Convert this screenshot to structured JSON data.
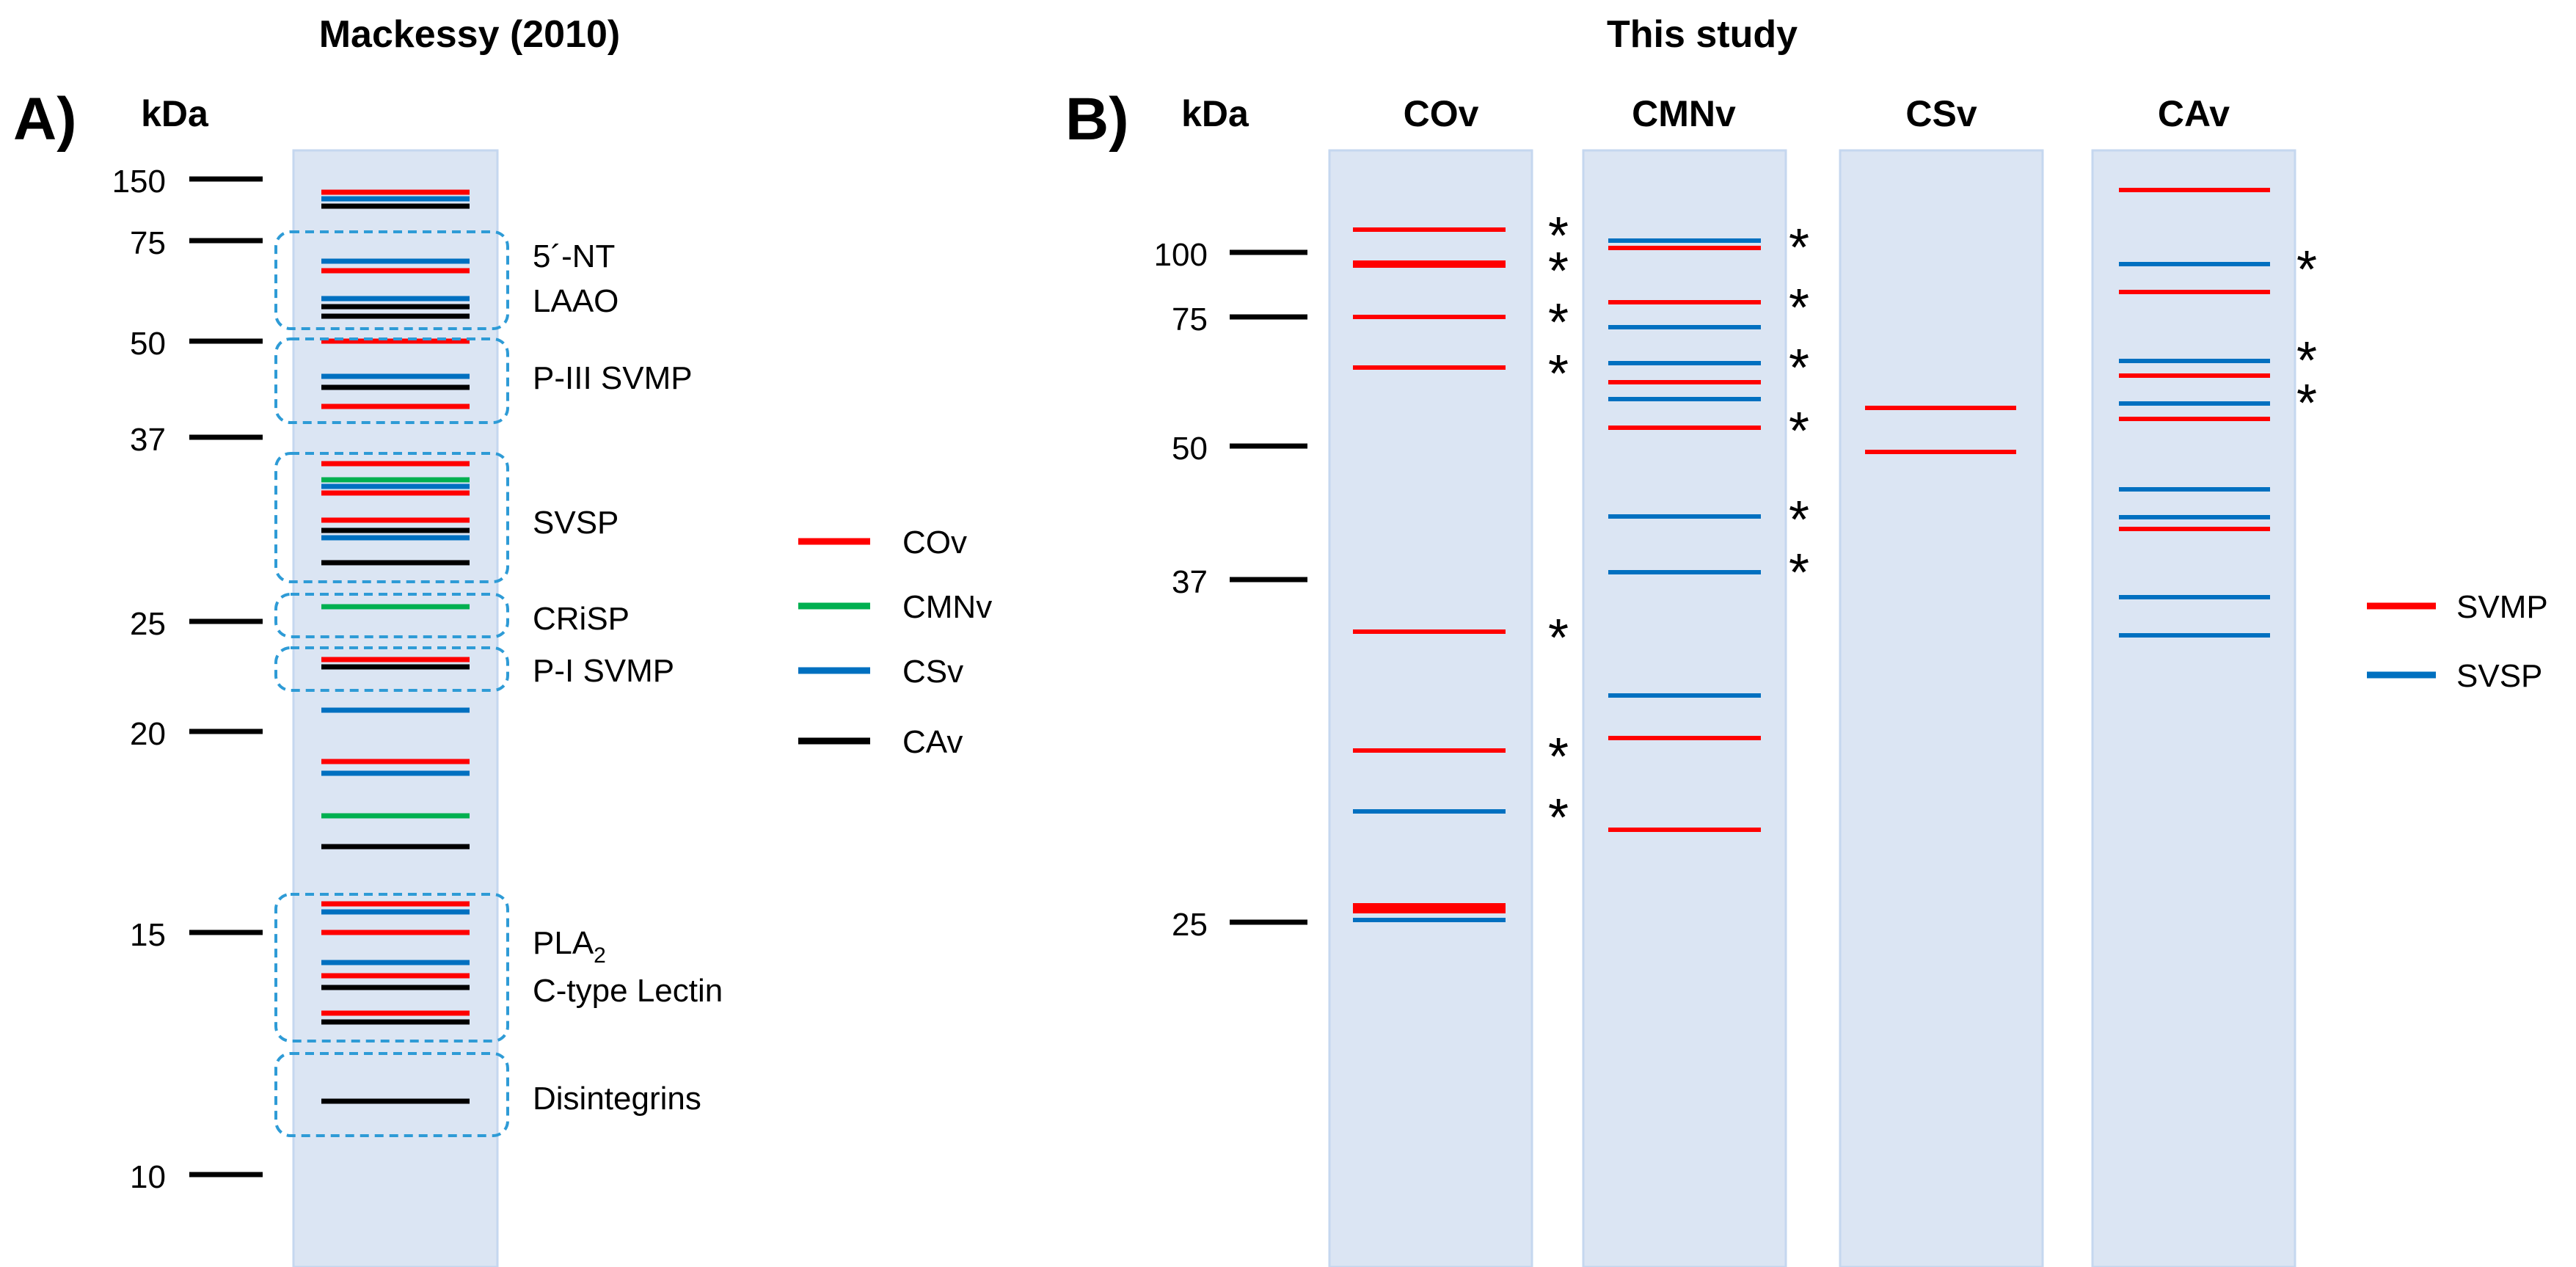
{
  "panel_a": {
    "title": "Mackessy (2010)",
    "panel_label": "A)",
    "axis_unit": "kDa",
    "markers": [
      "150",
      "75",
      "50",
      "37",
      "25",
      "20",
      "15",
      "10"
    ],
    "groups": [
      "5´-NT",
      "LAAO",
      "P-III SVMP",
      "SVSP",
      "CRiSP",
      "P-I SVMP",
      "PLA",
      "2",
      "C-type Lectin",
      "Disintegrins"
    ],
    "legend": [
      {
        "label": "COv",
        "color": "#ff0000"
      },
      {
        "label": "CMNv",
        "color": "#00b050"
      },
      {
        "label": "CSv",
        "color": "#0070c0"
      },
      {
        "label": "CAv",
        "color": "#000000"
      }
    ]
  },
  "panel_b": {
    "title": "This study",
    "panel_label": "B)",
    "axis_unit": "kDa",
    "markers": [
      "100",
      "75",
      "50",
      "37",
      "25"
    ],
    "lanes": [
      "COv",
      "CMNv",
      "CSv",
      "CAv"
    ],
    "asterisk": "*",
    "legend": [
      {
        "label": "SVMP",
        "color": "#ff0000"
      },
      {
        "label": "SVSP",
        "color": "#0070c0"
      }
    ]
  },
  "colors": {
    "lane_bg": "#dbe5f3",
    "lane_border": "#c5d7ef",
    "bracket": "#2e9bd6"
  }
}
